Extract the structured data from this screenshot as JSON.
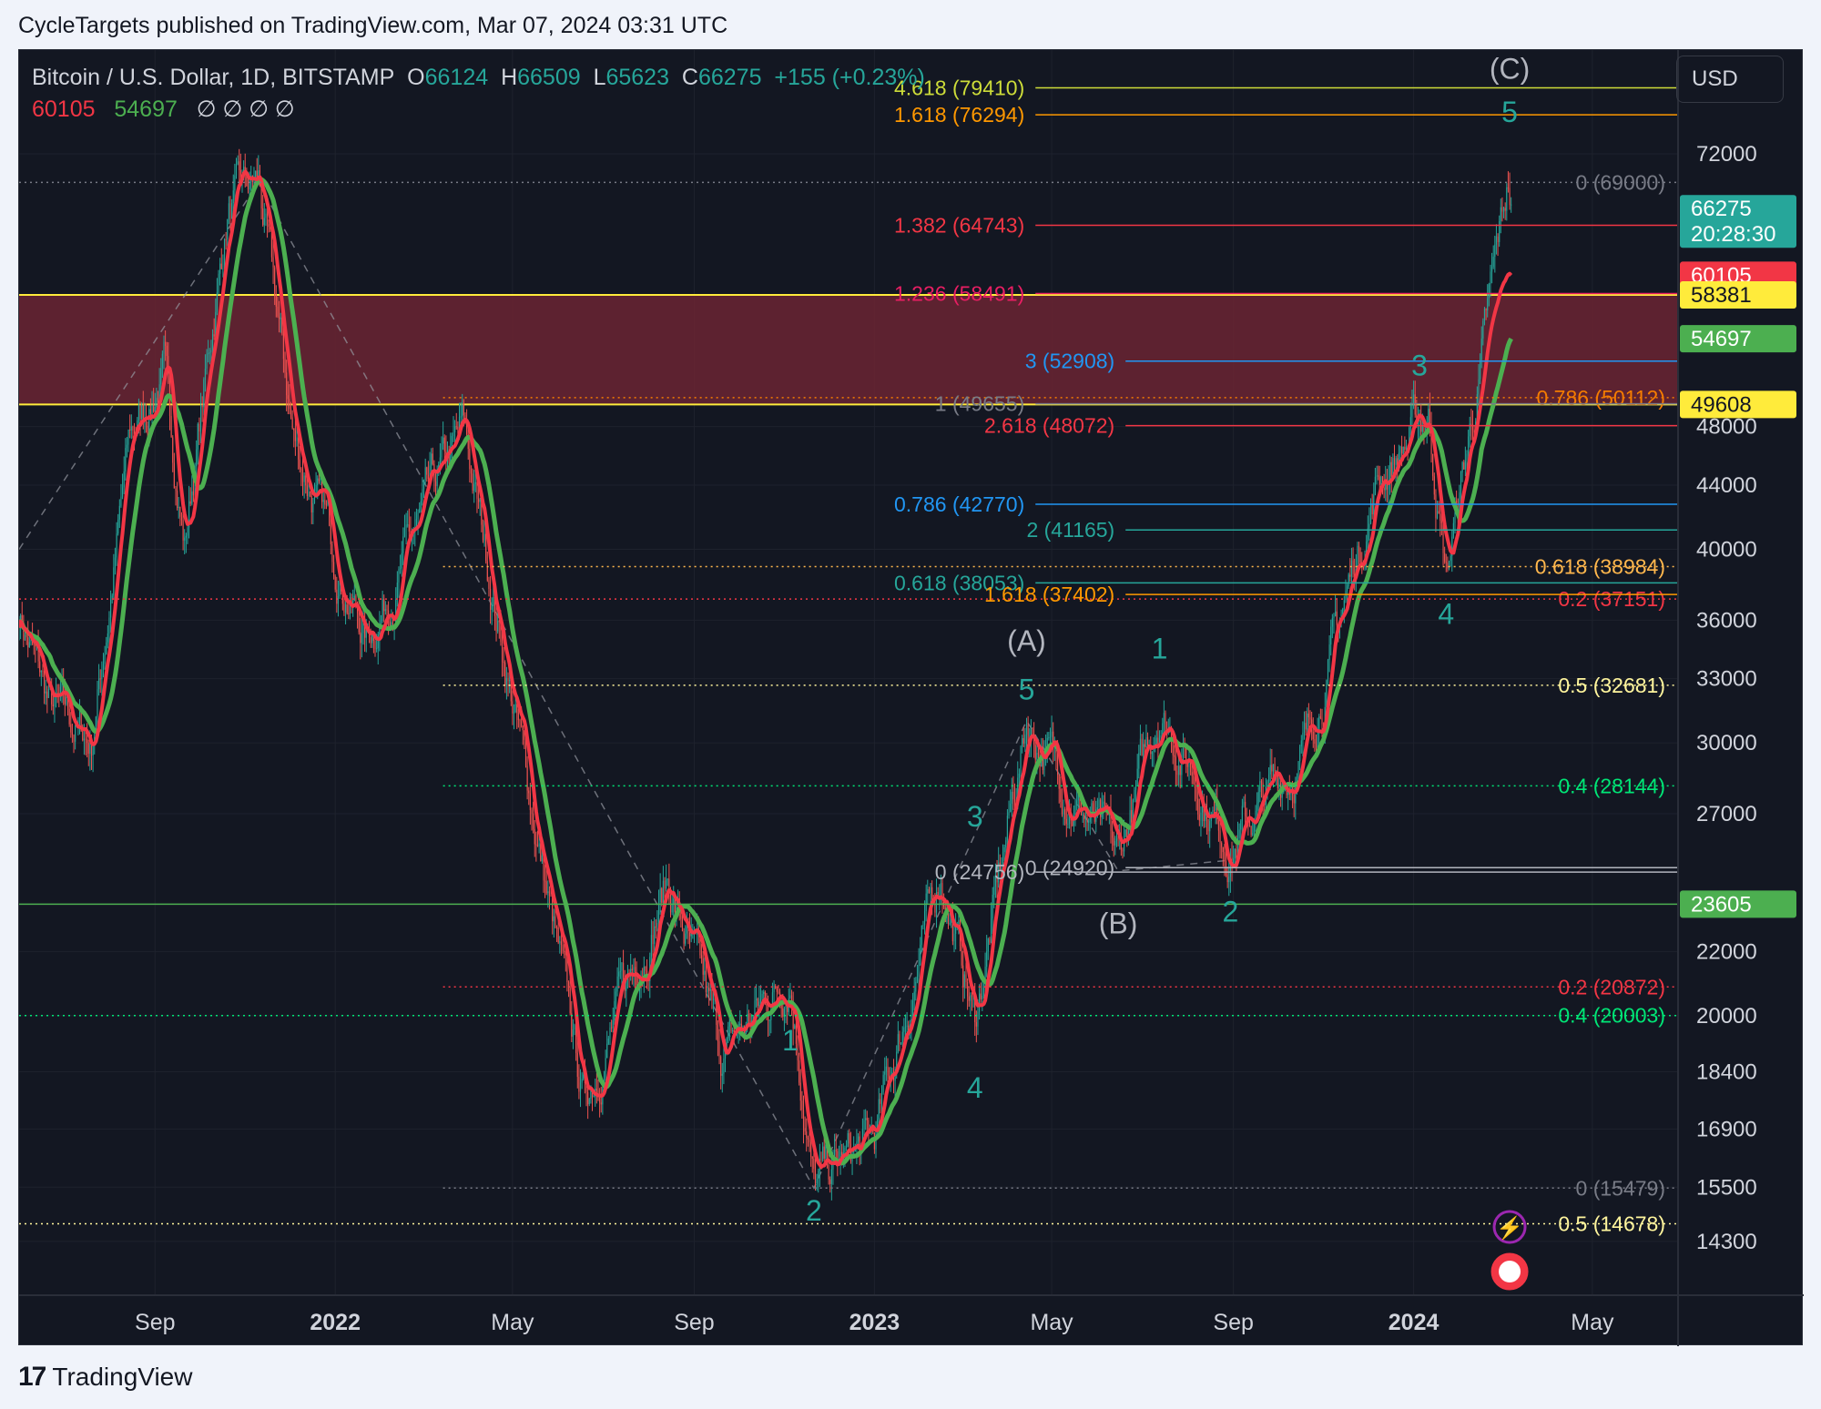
{
  "publisher": "CycleTargets published on TradingView.com, Mar 07, 2024 03:31 UTC",
  "brand": "TradingView",
  "colors": {
    "bg": "#131722",
    "up": "#26a69a",
    "ma_fast": "#f23645",
    "ma_slow": "#4caf50",
    "zone": "#6b2433"
  },
  "header": {
    "symbol": "Bitcoin / U.S. Dollar, 1D, BITSTAMP",
    "o_label": "O",
    "o": "66124",
    "h_label": "H",
    "h": "66509",
    "l_label": "L",
    "l": "65623",
    "c_label": "C",
    "c": "66275",
    "change": "+155 (+0.23%)",
    "ma_fast": "60105",
    "ma_slow": "54697",
    "empty_values": "∅ ∅ ∅ ∅"
  },
  "currency_button": "USD",
  "chart_data": {
    "type": "candlestick",
    "x_range": [
      "2021-06-01",
      "2024-06-28"
    ],
    "y_scale": "log",
    "y_range": [
      13200,
      84000
    ],
    "y_ticks": [
      72000,
      48000,
      44000,
      40000,
      36000,
      33000,
      30000,
      27000,
      22000,
      20000,
      18400,
      16900,
      15500,
      14300
    ],
    "x_ticks": [
      {
        "date": "2021-09-01",
        "label": "Sep",
        "bold": false
      },
      {
        "date": "2022-01-01",
        "label": "2022",
        "bold": true
      },
      {
        "date": "2022-05-01",
        "label": "May",
        "bold": false
      },
      {
        "date": "2022-09-01",
        "label": "Sep",
        "bold": false
      },
      {
        "date": "2023-01-01",
        "label": "2023",
        "bold": true
      },
      {
        "date": "2023-05-01",
        "label": "May",
        "bold": false
      },
      {
        "date": "2023-09-01",
        "label": "Sep",
        "bold": false
      },
      {
        "date": "2024-01-01",
        "label": "2024",
        "bold": true
      },
      {
        "date": "2024-05-01",
        "label": "May",
        "bold": false
      }
    ],
    "price_path": [
      [
        "2021-06-01",
        36500
      ],
      [
        "2021-06-22",
        31500
      ],
      [
        "2021-07-20",
        30000
      ],
      [
        "2021-08-15",
        47000
      ],
      [
        "2021-09-07",
        52000
      ],
      [
        "2021-09-21",
        40500
      ],
      [
        "2021-10-20",
        66000
      ],
      [
        "2021-11-10",
        68800
      ],
      [
        "2021-12-04",
        47000
      ],
      [
        "2022-01-22",
        35000
      ],
      [
        "2022-03-29",
        47500
      ],
      [
        "2022-05-12",
        28000
      ],
      [
        "2022-06-18",
        17600
      ],
      [
        "2022-08-14",
        24500
      ],
      [
        "2022-09-20",
        18800
      ],
      [
        "2022-11-05",
        21400
      ],
      [
        "2022-11-21",
        15500
      ],
      [
        "2023-01-01",
        16600
      ],
      [
        "2023-02-15",
        24800
      ],
      [
        "2023-03-10",
        19800
      ],
      [
        "2023-04-14",
        31000
      ],
      [
        "2023-06-15",
        25000
      ],
      [
        "2023-07-13",
        31800
      ],
      [
        "2023-08-30",
        25800
      ],
      [
        "2023-10-20",
        29800
      ],
      [
        "2023-12-08",
        44500
      ],
      [
        "2024-01-11",
        48900
      ],
      [
        "2024-01-23",
        38500
      ],
      [
        "2024-02-15",
        52000
      ],
      [
        "2024-03-05",
        69000
      ],
      [
        "2024-03-07",
        66275
      ]
    ],
    "ma_fast_last": 60105,
    "ma_slow_last": 54697,
    "zone": {
      "top": 58381,
      "bottom": 49608
    },
    "price_labels": [
      {
        "text": "66275",
        "sub": "20:28:30",
        "value": 66275,
        "bg": "#26a69a",
        "fg": "#ffffff"
      },
      {
        "text": "60105",
        "value": 60105,
        "bg": "#f23645",
        "fg": "#ffffff"
      },
      {
        "text": "58381",
        "value": 58381,
        "bg": "#ffeb3b",
        "fg": "#131722"
      },
      {
        "text": "54697",
        "value": 54697,
        "bg": "#4caf50",
        "fg": "#ffffff"
      },
      {
        "text": "49608",
        "value": 49608,
        "bg": "#ffeb3b",
        "fg": "#131722"
      },
      {
        "text": "23605",
        "value": 23605,
        "bg": "#4caf50",
        "fg": "#ffffff"
      }
    ],
    "fib_levels": [
      {
        "text": "4.618 (79410)",
        "value": 79410,
        "color": "#cddc39",
        "from": "2023-04-20",
        "label_pos": "left",
        "style": "solid"
      },
      {
        "text": "1.618 (76294)",
        "value": 76294,
        "color": "#ff9800",
        "from": "2023-04-20",
        "label_pos": "left",
        "style": "solid"
      },
      {
        "text": "0 (69000)",
        "value": 69000,
        "color": "#787b86",
        "from": "2021-06-01",
        "label_pos": "right",
        "style": "dotted"
      },
      {
        "text": "1.382 (64743)",
        "value": 64743,
        "color": "#f23645",
        "from": "2023-04-20",
        "label_pos": "left",
        "style": "solid"
      },
      {
        "text": "1.236 (58491)",
        "value": 58491,
        "color": "#e91e63",
        "from": "2023-04-20",
        "label_pos": "left",
        "style": "solid"
      },
      {
        "text": "3 (52908)",
        "value": 52908,
        "color": "#2196f3",
        "from": "2023-06-20",
        "label_pos": "left",
        "style": "solid"
      },
      {
        "text": "0.786 (50112)",
        "value": 50112,
        "color": "#f57c00",
        "from": "2022-03-15",
        "label_pos": "right",
        "style": "dotted"
      },
      {
        "text": "1 (49655)",
        "value": 49655,
        "color": "#787b86",
        "from": "2023-04-20",
        "label_pos": "left",
        "style": "solid"
      },
      {
        "text": "2.618 (48072)",
        "value": 48072,
        "color": "#f23645",
        "from": "2023-06-20",
        "label_pos": "left",
        "style": "solid"
      },
      {
        "text": "0.786 (42770)",
        "value": 42770,
        "color": "#2196f3",
        "from": "2023-04-20",
        "label_pos": "left",
        "style": "solid"
      },
      {
        "text": "2 (41165)",
        "value": 41165,
        "color": "#26a69a",
        "from": "2023-06-20",
        "label_pos": "left",
        "style": "solid"
      },
      {
        "text": "0.618 (38984)",
        "value": 38984,
        "color": "#ffb74d",
        "from": "2022-03-15",
        "label_pos": "right",
        "style": "dotted"
      },
      {
        "text": "0.618 (38053)",
        "value": 38053,
        "color": "#26a69a",
        "from": "2023-04-20",
        "label_pos": "left",
        "style": "solid"
      },
      {
        "text": "0.2 (37151)",
        "value": 37151,
        "color": "#f23645",
        "from": "2021-06-01",
        "label_pos": "right",
        "style": "dotted"
      },
      {
        "text": "1.618 (37402)",
        "value": 37402,
        "color": "#ff9800",
        "from": "2023-06-20",
        "label_pos": "left",
        "style": "solid"
      },
      {
        "text": "0.5 (32681)",
        "value": 32681,
        "color": "#fff59d",
        "from": "2022-03-15",
        "label_pos": "right",
        "style": "dotted"
      },
      {
        "text": "0.4 (28144)",
        "value": 28144,
        "color": "#00e676",
        "from": "2022-03-15",
        "label_pos": "right",
        "style": "dotted"
      },
      {
        "text": "0 (24920)",
        "value": 24920,
        "color": "#b2b5be",
        "from": "2023-06-20",
        "label_pos": "left",
        "style": "solid"
      },
      {
        "text": "0 (24756)",
        "value": 24756,
        "color": "#b2b5be",
        "from": "2023-04-20",
        "label_pos": "left",
        "style": "solid"
      },
      {
        "text": "",
        "value": 23605,
        "color": "#4caf50",
        "from": "2021-06-01",
        "label_pos": "none",
        "style": "solid"
      },
      {
        "text": "0.2 (20872)",
        "value": 20872,
        "color": "#f23645",
        "from": "2022-03-15",
        "label_pos": "right",
        "style": "dotted"
      },
      {
        "text": "0.4 (20003)",
        "value": 20003,
        "color": "#00e676",
        "from": "2021-06-01",
        "label_pos": "right",
        "style": "dotted"
      },
      {
        "text": "0 (15479)",
        "value": 15479,
        "color": "#787b86",
        "from": "2022-03-15",
        "label_pos": "right",
        "style": "dotted"
      },
      {
        "text": "0.5 (14678)",
        "value": 14678,
        "color": "#fff59d",
        "from": "2021-06-01",
        "label_pos": "right",
        "style": "dotted"
      }
    ],
    "wave_labels": [
      {
        "text": "(C)",
        "date": "2024-03-06",
        "price": 80500,
        "color": "#b2b5be"
      },
      {
        "text": "5",
        "date": "2024-03-06",
        "price": 75500,
        "color": "#26a69a"
      },
      {
        "text": "3",
        "date": "2024-01-05",
        "price": 51800,
        "color": "#26a69a"
      },
      {
        "text": "4",
        "date": "2024-01-23",
        "price": 35800,
        "color": "#26a69a"
      },
      {
        "text": "(A)",
        "date": "2023-04-14",
        "price": 34400,
        "color": "#b2b5be"
      },
      {
        "text": "5",
        "date": "2023-04-14",
        "price": 32000,
        "color": "#26a69a"
      },
      {
        "text": "1",
        "date": "2023-07-13",
        "price": 34000,
        "color": "#26a69a"
      },
      {
        "text": "3",
        "date": "2023-03-10",
        "price": 26500,
        "color": "#26a69a"
      },
      {
        "text": "(B)",
        "date": "2023-06-15",
        "price": 22600,
        "color": "#b2b5be"
      },
      {
        "text": "2",
        "date": "2023-08-30",
        "price": 23000,
        "color": "#26a69a"
      },
      {
        "text": "1",
        "date": "2022-11-05",
        "price": 19000,
        "color": "#26a69a"
      },
      {
        "text": "4",
        "date": "2023-03-10",
        "price": 17700,
        "color": "#26a69a"
      },
      {
        "text": "2",
        "date": "2022-11-21",
        "price": 14750,
        "color": "#26a69a"
      }
    ],
    "zigzag": [
      [
        "2021-06-01",
        40000
      ],
      [
        "2021-11-10",
        69000
      ],
      [
        "2022-11-21",
        15479
      ],
      [
        "2023-04-14",
        31000
      ],
      [
        "2023-06-15",
        24800
      ],
      [
        "2023-08-30",
        25200
      ]
    ]
  }
}
